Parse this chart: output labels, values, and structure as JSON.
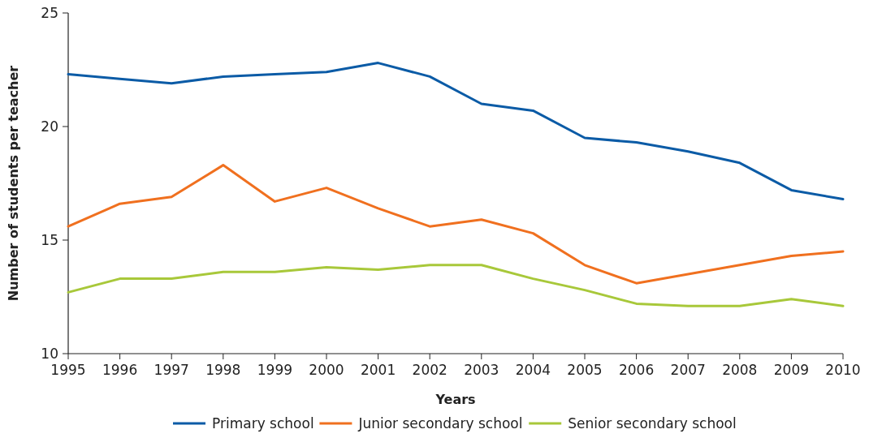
{
  "chart_data": {
    "type": "line",
    "xlabel": "Years",
    "ylabel": "Number of students per teacher",
    "x": [
      1995,
      1996,
      1997,
      1998,
      1999,
      2000,
      2001,
      2002,
      2003,
      2004,
      2005,
      2006,
      2007,
      2008,
      2009,
      2010
    ],
    "xlim": [
      1995,
      2010
    ],
    "xticks": [
      1995,
      1996,
      1997,
      1998,
      1999,
      2000,
      2001,
      2002,
      2003,
      2004,
      2005,
      2006,
      2007,
      2008,
      2009,
      2010
    ],
    "ylim": [
      10,
      25
    ],
    "yticks": [
      10,
      15,
      20,
      25
    ],
    "grid": false,
    "legend": "bottom",
    "marker": "none",
    "line_style": "solid",
    "series": [
      {
        "name": "Primary school",
        "color": "#0b5ba6",
        "values": [
          22.3,
          22.1,
          21.9,
          22.2,
          22.3,
          22.4,
          22.8,
          22.2,
          21.0,
          20.7,
          19.5,
          19.3,
          18.9,
          18.4,
          17.2,
          16.8
        ]
      },
      {
        "name": "Junior secondary school",
        "color": "#f0701f",
        "values": [
          15.6,
          16.6,
          16.9,
          18.3,
          16.7,
          17.3,
          16.4,
          15.6,
          15.9,
          15.3,
          13.9,
          13.1,
          13.5,
          13.9,
          14.3,
          14.5
        ]
      },
      {
        "name": "Senior secondary school",
        "color": "#a8c83a",
        "values": [
          12.7,
          13.3,
          13.3,
          13.6,
          13.6,
          13.8,
          13.7,
          13.9,
          13.9,
          13.3,
          12.8,
          12.2,
          12.1,
          12.1,
          12.4,
          12.1
        ]
      }
    ]
  }
}
